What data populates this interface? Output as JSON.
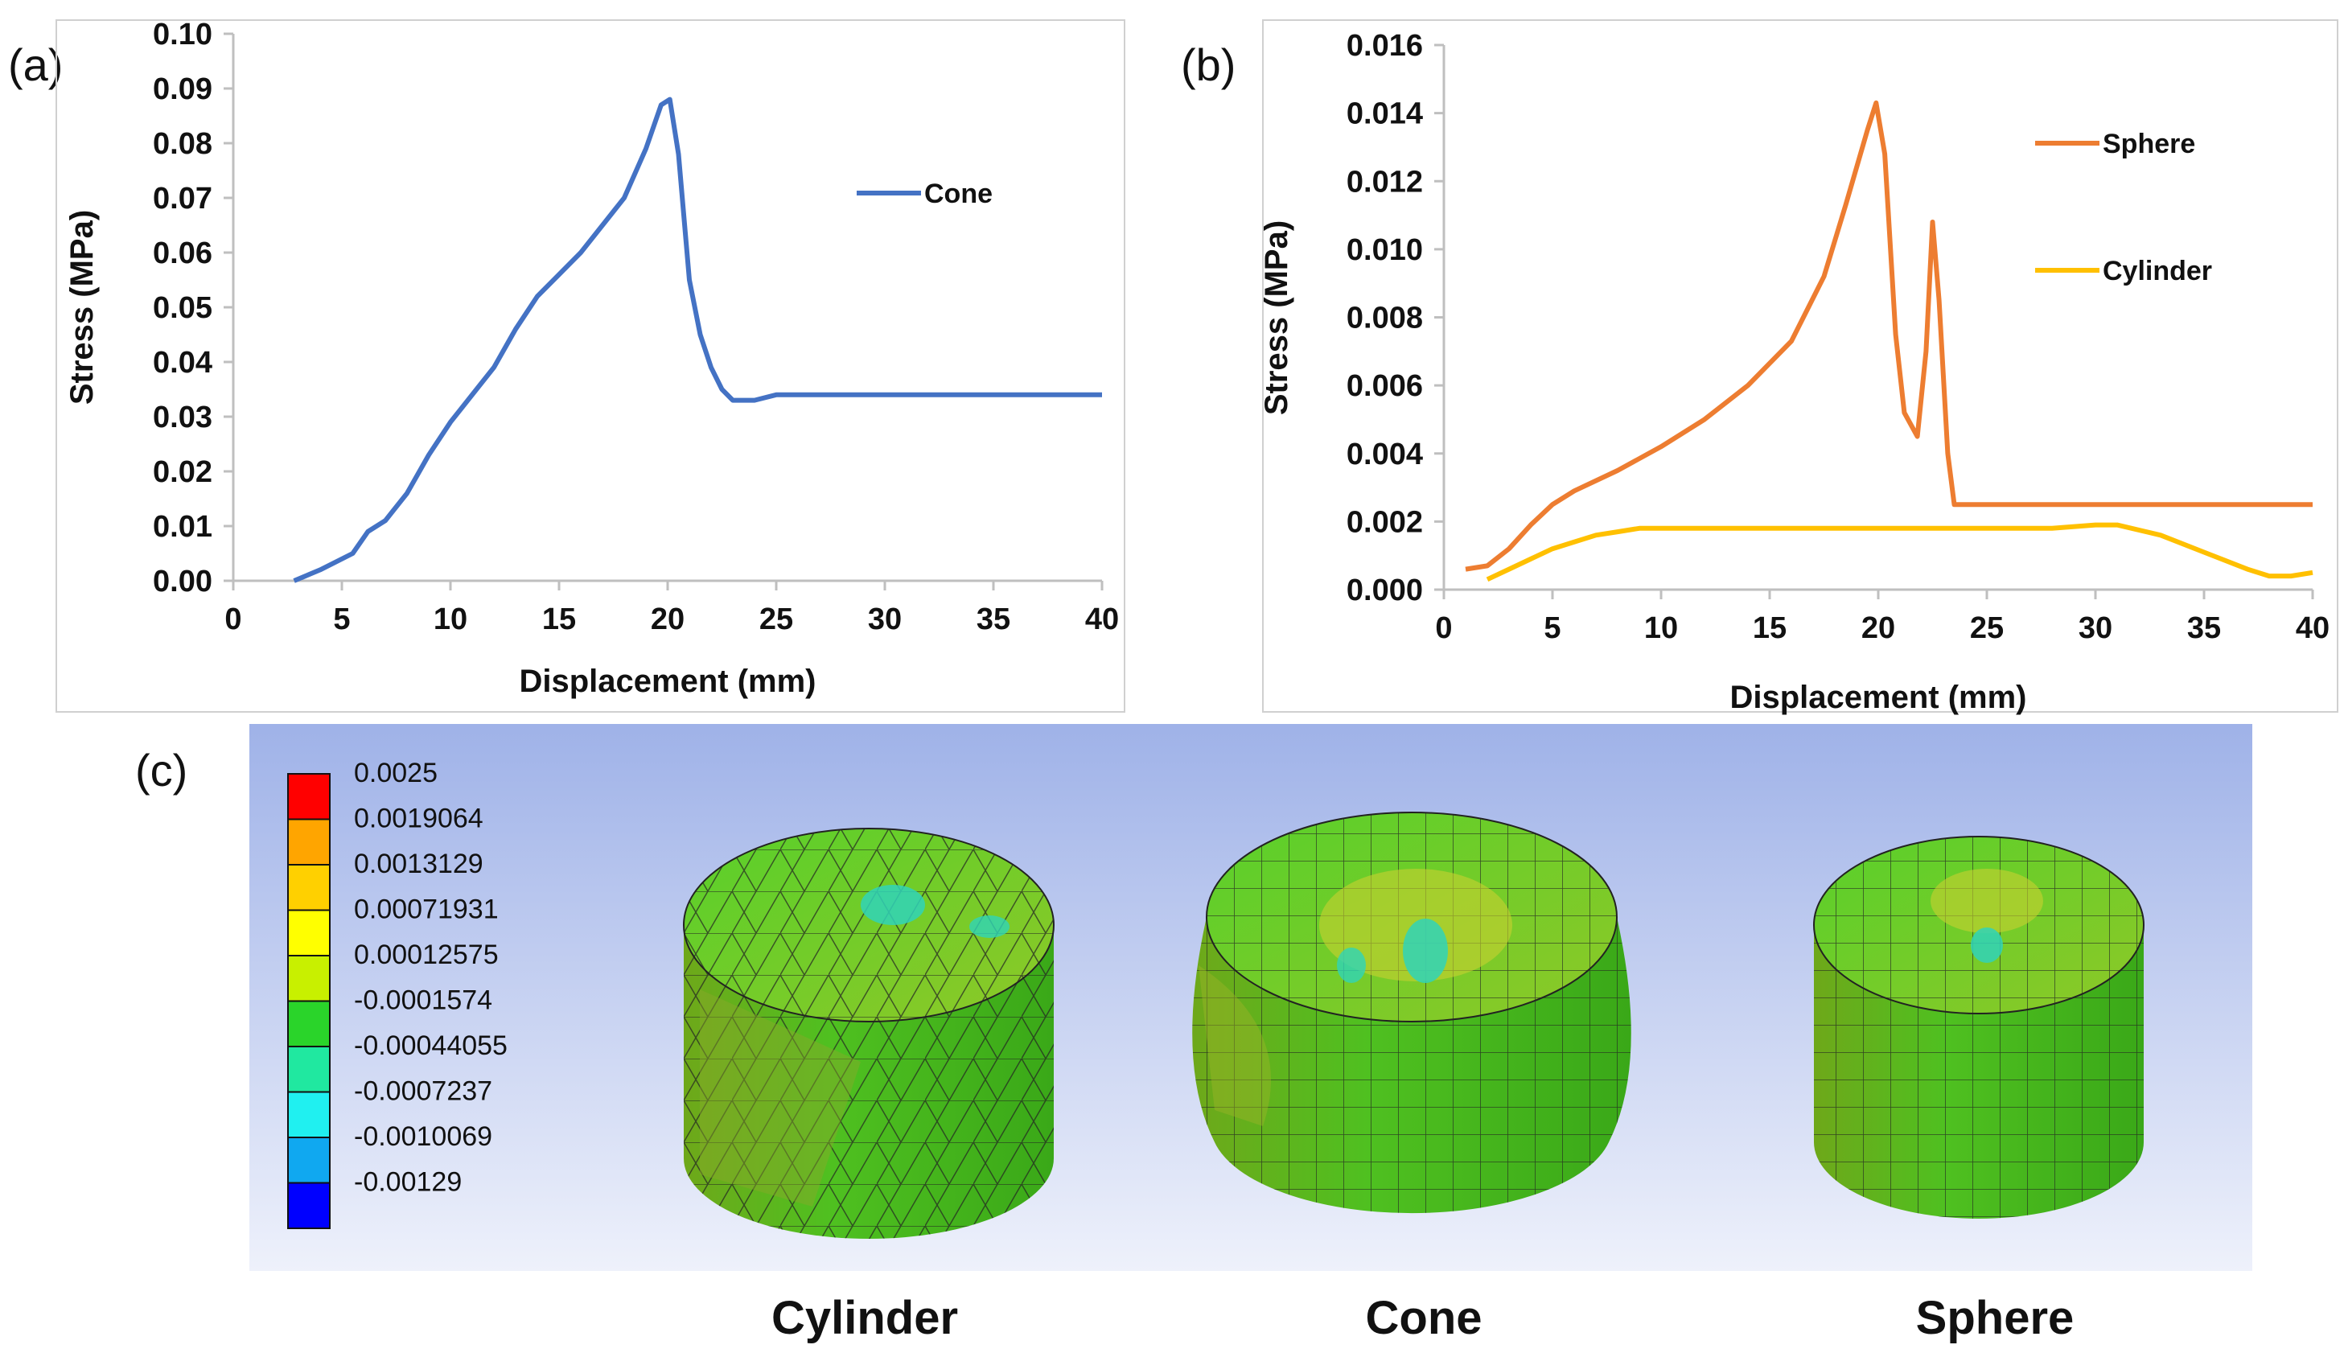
{
  "chart_data": [
    {
      "panel": "(a)",
      "type": "line",
      "xlabel": "Displacement (mm)",
      "ylabel": "Stress (MPa)",
      "xlim": [
        0,
        40
      ],
      "ylim": [
        0,
        0.1
      ],
      "xticks": [
        "0",
        "5",
        "10",
        "15",
        "20",
        "25",
        "30",
        "35",
        "40"
      ],
      "yticks": [
        "0.00",
        "0.01",
        "0.02",
        "0.03",
        "0.04",
        "0.05",
        "0.06",
        "0.07",
        "0.08",
        "0.09",
        "0.10"
      ],
      "legend_position": "top-right",
      "series": [
        {
          "name": "Cone",
          "color": "#4472C4",
          "points": [
            [
              2.8,
              0.0
            ],
            [
              4,
              0.002
            ],
            [
              5.5,
              0.005
            ],
            [
              6.2,
              0.009
            ],
            [
              7,
              0.011
            ],
            [
              8,
              0.016
            ],
            [
              9,
              0.023
            ],
            [
              10,
              0.029
            ],
            [
              11,
              0.034
            ],
            [
              12,
              0.039
            ],
            [
              13,
              0.046
            ],
            [
              14,
              0.052
            ],
            [
              15,
              0.056
            ],
            [
              16,
              0.06
            ],
            [
              17,
              0.065
            ],
            [
              18,
              0.07
            ],
            [
              19,
              0.079
            ],
            [
              19.7,
              0.087
            ],
            [
              20.1,
              0.088
            ],
            [
              20.5,
              0.078
            ],
            [
              21,
              0.055
            ],
            [
              21.5,
              0.045
            ],
            [
              22,
              0.039
            ],
            [
              22.5,
              0.035
            ],
            [
              23,
              0.033
            ],
            [
              24,
              0.033
            ],
            [
              25,
              0.034
            ],
            [
              30,
              0.034
            ],
            [
              35,
              0.034
            ],
            [
              40,
              0.034
            ]
          ]
        }
      ]
    },
    {
      "panel": "(b)",
      "type": "line",
      "xlabel": "Displacement (mm)",
      "ylabel": "Stress (MPa)",
      "xlim": [
        0,
        40
      ],
      "ylim": [
        0,
        0.016
      ],
      "xticks": [
        "0",
        "5",
        "10",
        "15",
        "20",
        "25",
        "30",
        "35",
        "40"
      ],
      "yticks": [
        "0.000",
        "0.002",
        "0.004",
        "0.006",
        "0.008",
        "0.010",
        "0.012",
        "0.014",
        "0.016"
      ],
      "legend_position": "top-right",
      "series": [
        {
          "name": "Sphere",
          "color": "#ED7D31",
          "points": [
            [
              1,
              0.0006
            ],
            [
              2,
              0.0007
            ],
            [
              3,
              0.0012
            ],
            [
              4,
              0.0019
            ],
            [
              5,
              0.0025
            ],
            [
              6,
              0.0029
            ],
            [
              8,
              0.0035
            ],
            [
              10,
              0.0042
            ],
            [
              12,
              0.005
            ],
            [
              14,
              0.006
            ],
            [
              16,
              0.0073
            ],
            [
              17.5,
              0.0092
            ],
            [
              18.5,
              0.0113
            ],
            [
              19.5,
              0.0135
            ],
            [
              19.9,
              0.0143
            ],
            [
              20.3,
              0.0128
            ],
            [
              20.8,
              0.0075
            ],
            [
              21.2,
              0.0052
            ],
            [
              21.8,
              0.0045
            ],
            [
              22.2,
              0.007
            ],
            [
              22.5,
              0.0108
            ],
            [
              22.8,
              0.0085
            ],
            [
              23.2,
              0.004
            ],
            [
              23.5,
              0.0025
            ],
            [
              25,
              0.0025
            ],
            [
              30,
              0.0025
            ],
            [
              35,
              0.0025
            ],
            [
              40,
              0.0025
            ]
          ]
        },
        {
          "name": "Cylinder",
          "color": "#FFC000",
          "points": [
            [
              2,
              0.0003
            ],
            [
              3,
              0.0006
            ],
            [
              4,
              0.0009
            ],
            [
              5,
              0.0012
            ],
            [
              6,
              0.0014
            ],
            [
              7,
              0.0016
            ],
            [
              8,
              0.0017
            ],
            [
              9,
              0.0018
            ],
            [
              10,
              0.0018
            ],
            [
              15,
              0.0018
            ],
            [
              20,
              0.0018
            ],
            [
              25,
              0.0018
            ],
            [
              28,
              0.0018
            ],
            [
              30,
              0.0019
            ],
            [
              31,
              0.0019
            ],
            [
              33,
              0.0016
            ],
            [
              35,
              0.0011
            ],
            [
              37,
              0.0006
            ],
            [
              38,
              0.0004
            ],
            [
              39,
              0.0004
            ],
            [
              40,
              0.0005
            ]
          ]
        }
      ]
    }
  ],
  "panel_c": {
    "label": "(c)",
    "scale_values": [
      "0.0025",
      "0.0019064",
      "0.0013129",
      "0.00071931",
      "0.00012575",
      "-0.0001574",
      "-0.00044055",
      "-0.0007237",
      "-0.0010069",
      "-0.00129"
    ],
    "scale_colors": [
      "#FF0000",
      "#FFA500",
      "#FFD000",
      "#FFFF00",
      "#C8F000",
      "#2AD42A",
      "#20E8A0",
      "#20F0F0",
      "#10A8F0",
      "#0000FF"
    ],
    "models": [
      {
        "name": "Cylinder"
      },
      {
        "name": "Cone"
      },
      {
        "name": "Sphere"
      }
    ]
  }
}
